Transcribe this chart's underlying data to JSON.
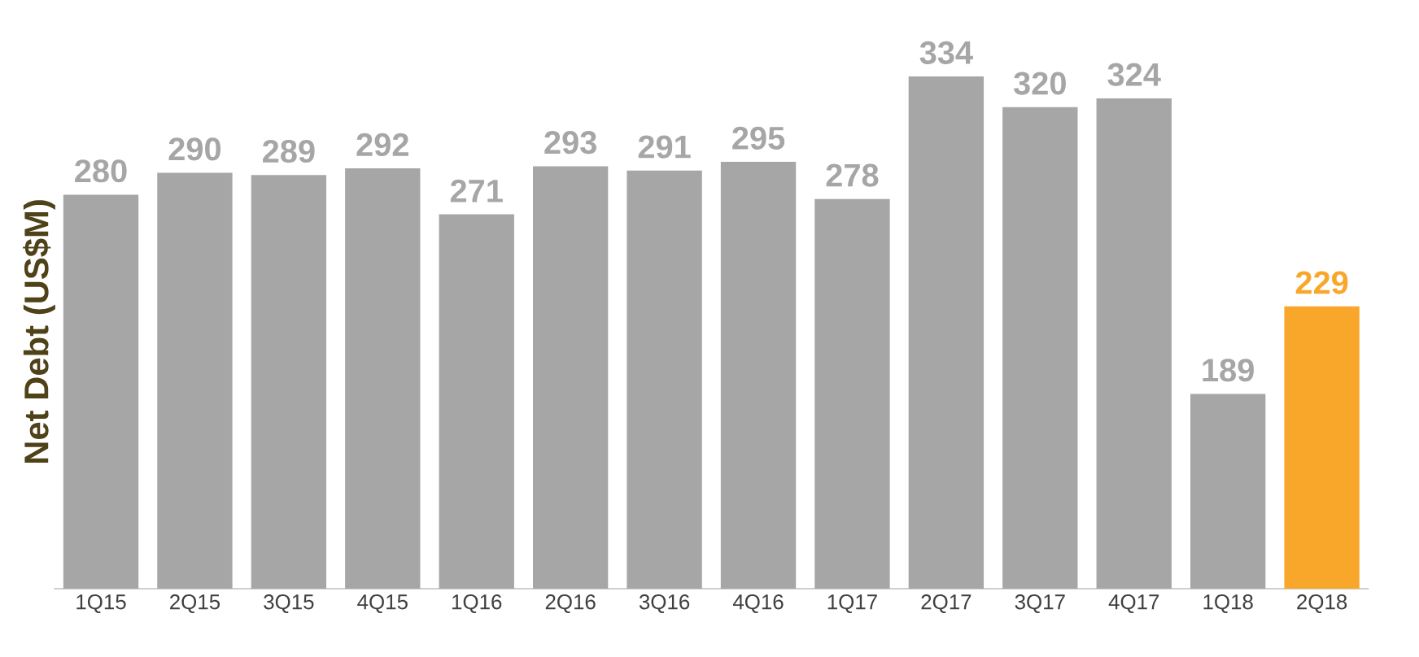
{
  "chart_data": {
    "type": "bar",
    "ylabel": "Net Debt (US$M)",
    "categories": [
      "1Q15",
      "2Q15",
      "3Q15",
      "4Q15",
      "1Q16",
      "2Q16",
      "3Q16",
      "4Q16",
      "1Q17",
      "2Q17",
      "3Q17",
      "4Q17",
      "1Q18",
      "2Q18"
    ],
    "values": [
      280,
      290,
      289,
      292,
      271,
      293,
      291,
      295,
      278,
      334,
      320,
      324,
      189,
      229
    ],
    "colors": [
      "#a6a6a6",
      "#a6a6a6",
      "#a6a6a6",
      "#a6a6a6",
      "#a6a6a6",
      "#a6a6a6",
      "#a6a6a6",
      "#a6a6a6",
      "#a6a6a6",
      "#a6a6a6",
      "#a6a6a6",
      "#a6a6a6",
      "#a6a6a6",
      "#f9a72b"
    ],
    "ylim": [
      100,
      334
    ],
    "data_labels": true,
    "tick_labels": "x"
  }
}
